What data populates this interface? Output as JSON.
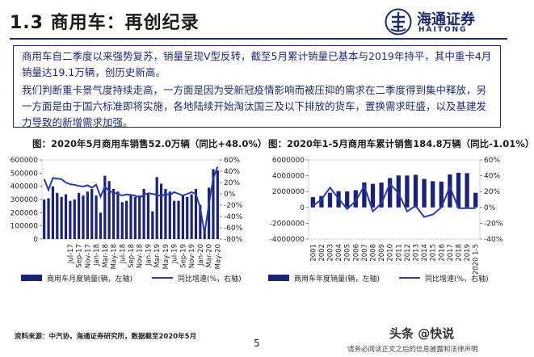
{
  "header": {
    "title": "1.3 商用车：再创纪录",
    "logo_cn": "海通证券",
    "logo_en": "HAITONG"
  },
  "summary": {
    "p1": "商用车自二季度以来强势复苏，销量呈现V型反转，截至5月累计销量已基本与2019年持平，其中重卡4月销量达19.1万辆，创历史新高。",
    "p2": "我们判断重卡景气度持续走高，一方面是因为受新冠疫情影响而被压抑的需求在二季度得到集中释放，另一方面是由于国六标准即将实施，各地陆续开始淘汰国三及以下排放的货车，置换需求旺盛，以及基建发力导致的新增需求加强。"
  },
  "colors": {
    "navy": "#1f2a6b",
    "blue": "#2a3aa8",
    "bar": "#1c2373"
  },
  "chart_data": [
    {
      "type": "bar",
      "title": "图：2020年5月商用车销售52.0万辆（同比+48.0%）",
      "x_tick_labels": [
        "Jul-17",
        "Sep-17",
        "Nov-17",
        "Jan-18",
        "Mar-18",
        "May-18",
        "Jul-18",
        "Sep-18",
        "Nov-18",
        "Jan-19",
        "Mar-19",
        "May-19",
        "Jul-19",
        "Sep-19",
        "Nov-19",
        "Jan-20",
        "Mar-20",
        "May-20"
      ],
      "months": [
        "2017-01",
        "2017-02",
        "2017-03",
        "2017-04",
        "2017-05",
        "2017-06",
        "2017-07",
        "2017-08",
        "2017-09",
        "2017-10",
        "2017-11",
        "2017-12",
        "2018-01",
        "2018-02",
        "2018-03",
        "2018-04",
        "2018-05",
        "2018-06",
        "2018-07",
        "2018-08",
        "2018-09",
        "2018-10",
        "2018-11",
        "2018-12",
        "2019-01",
        "2019-02",
        "2019-03",
        "2019-04",
        "2019-05",
        "2019-06",
        "2019-07",
        "2019-08",
        "2019-09",
        "2019-10",
        "2019-11",
        "2019-12",
        "2020-01",
        "2020-02",
        "2020-03",
        "2020-04",
        "2020-05"
      ],
      "series": [
        {
          "name": "商用车月度销量(辆，左轴)",
          "axis": "left",
          "values": [
            300000,
            310000,
            400000,
            350000,
            320000,
            340000,
            290000,
            300000,
            350000,
            330000,
            360000,
            380000,
            330000,
            200000,
            480000,
            440000,
            380000,
            360000,
            280000,
            290000,
            340000,
            320000,
            330000,
            380000,
            340000,
            210000,
            470000,
            420000,
            380000,
            360000,
            290000,
            290000,
            330000,
            320000,
            340000,
            380000,
            260000,
            70000,
            390000,
            530000,
            520000
          ]
        },
        {
          "name": "同比增速(%，右轴)",
          "axis": "right",
          "values": [
            26,
            7,
            28,
            27,
            26,
            20,
            17,
            16,
            14,
            13,
            15,
            11,
            16,
            -5,
            13,
            5,
            2,
            0,
            -3,
            -1,
            -2,
            -3,
            -7,
            -2,
            1,
            0,
            -2,
            -4,
            0,
            -2,
            3,
            0,
            -3,
            0,
            3,
            0,
            -25,
            -70,
            -18,
            27,
            48
          ]
        }
      ],
      "left_axis": {
        "min": 0,
        "max": 600000,
        "ticks": [
          0,
          100000,
          200000,
          300000,
          400000,
          500000,
          600000
        ]
      },
      "right_axis": {
        "min": -80,
        "max": 60,
        "ticks": [
          -80,
          -60,
          -40,
          -20,
          0,
          20,
          40,
          60
        ],
        "unit": "%"
      },
      "legend": [
        "商用车月度销量(辆，左轴)",
        "同比增速(%，右轴)"
      ],
      "legend_position": "bottom"
    },
    {
      "type": "bar",
      "title": "图：2020年1-5月商用车累计销售184.8万辆（同比-1.01%）",
      "categories": [
        "2001",
        "2002",
        "2003",
        "2004",
        "2005",
        "2006",
        "2007",
        "2008",
        "2009",
        "2010",
        "2011",
        "2012",
        "2013",
        "2014",
        "2015",
        "2016",
        "2017",
        "2018",
        "2019",
        "2020 1-5"
      ],
      "series": [
        {
          "name": "商用车年度销量(辆，左轴)",
          "axis": "left",
          "values": [
            1300000,
            1440000,
            1850000,
            2050000,
            2020000,
            2180000,
            3160000,
            2980000,
            3130000,
            3710000,
            4040000,
            4030000,
            4120000,
            3600000,
            3310000,
            3260000,
            4170000,
            4370000,
            4330000,
            1848000
          ]
        },
        {
          "name": "同比增速(%，右轴)",
          "axis": "right",
          "values": [
            2,
            10,
            25,
            11,
            -2,
            8,
            27,
            -5,
            5,
            30,
            18,
            -5,
            2,
            -12,
            -9,
            0,
            26,
            -1,
            -1,
            -1
          ]
        }
      ],
      "left_axis": {
        "min": -4000000,
        "max": 6000000,
        "ticks": [
          -4000000,
          -2000000,
          0,
          2000000,
          4000000,
          6000000
        ]
      },
      "right_axis": {
        "min": -40,
        "max": 60,
        "ticks": [
          -40,
          -20,
          0,
          20,
          40,
          60
        ],
        "unit": "%"
      },
      "legend": [
        "商用车年度销量(辆，左轴)",
        "同比增速(%，右轴)"
      ],
      "legend_position": "bottom"
    }
  ],
  "footer": {
    "source": "资料来源：中汽协，海通证券研究所，数据截至2020年5月",
    "page": "5",
    "watermark": "头条 @快说",
    "disclaimer": "请务必阅读正文之后的信息披露和法律声明"
  }
}
